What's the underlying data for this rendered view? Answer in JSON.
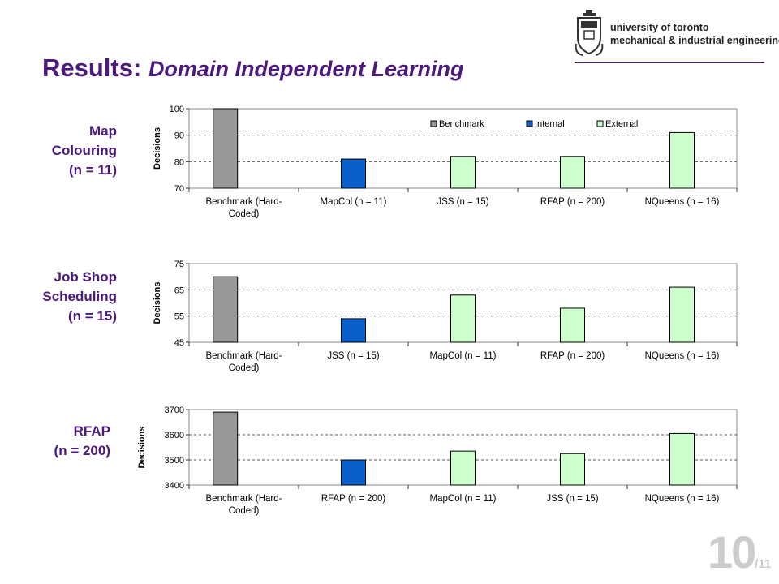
{
  "title": {
    "main": "Results:",
    "sub": "Domain Independent Learning"
  },
  "logo": {
    "line1": "university of toronto",
    "line2": "mechanical & industrial engineering"
  },
  "page": {
    "number": "10",
    "total": "/11"
  },
  "colors": {
    "title": "#4b1a7a",
    "benchmark": "#999999",
    "internal": "#0a5fc9",
    "external": "#ccffcc"
  },
  "chart_data": [
    {
      "type": "bar",
      "label": "Map\nColouring\n(n = 11)",
      "ylabel": "Decisions",
      "ylim": [
        70,
        100
      ],
      "yticks": [
        70,
        80,
        90,
        100
      ],
      "categories": [
        "Benchmark (Hard-\nCoded)",
        "MapCol (n = 11)",
        "JSS (n = 15)",
        "RFAP (n = 200)",
        "NQueens (n = 16)"
      ],
      "values": [
        100,
        81,
        82,
        82,
        91
      ],
      "kinds": [
        "Benchmark",
        "Internal",
        "External",
        "External",
        "External"
      ],
      "legend": [
        "Benchmark",
        "Internal",
        "External"
      ],
      "legend_position": "top-right",
      "grid": true
    },
    {
      "type": "bar",
      "label": "Job Shop\nScheduling\n(n = 15)",
      "ylabel": "Decisions",
      "ylim": [
        45,
        75
      ],
      "yticks": [
        45,
        55,
        65,
        75
      ],
      "categories": [
        "Benchmark (Hard-\nCoded)",
        "JSS (n = 15)",
        "MapCol (n = 11)",
        "RFAP (n = 200)",
        "NQueens (n = 16)"
      ],
      "values": [
        70,
        54,
        63,
        58,
        66
      ],
      "kinds": [
        "Benchmark",
        "Internal",
        "External",
        "External",
        "External"
      ],
      "grid": true
    },
    {
      "type": "bar",
      "label": "RFAP\n(n = 200)",
      "ylabel": "Decisions",
      "ylim": [
        3400,
        3700
      ],
      "yticks": [
        3400,
        3500,
        3600,
        3700
      ],
      "categories": [
        "Benchmark (Hard-\nCoded)",
        "RFAP (n = 200)",
        "MapCol (n = 11)",
        "JSS (n = 15)",
        "NQueens (n = 16)"
      ],
      "values": [
        3690,
        3500,
        3535,
        3525,
        3605
      ],
      "kinds": [
        "Benchmark",
        "Internal",
        "External",
        "External",
        "External"
      ],
      "grid": true
    }
  ]
}
